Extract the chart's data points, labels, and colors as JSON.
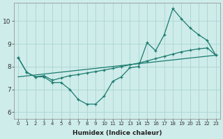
{
  "xlabel": "Humidex (Indice chaleur)",
  "bg_color": "#ceecea",
  "grid_color": "#a8d5d0",
  "line_color": "#1a7a6e",
  "xlim": [
    -0.5,
    23.5
  ],
  "ylim": [
    5.7,
    10.8
  ],
  "xticks": [
    0,
    1,
    2,
    3,
    4,
    5,
    6,
    7,
    8,
    9,
    10,
    11,
    12,
    13,
    14,
    15,
    16,
    17,
    18,
    19,
    20,
    21,
    22,
    23
  ],
  "yticks": [
    6,
    7,
    8,
    9,
    10
  ],
  "line1_x": [
    0,
    1,
    2,
    3,
    4,
    5,
    6,
    7,
    8,
    9,
    10,
    11,
    12,
    13,
    14,
    15,
    16,
    17,
    18,
    19,
    20,
    21,
    22,
    23
  ],
  "line1_y": [
    8.4,
    7.75,
    7.55,
    7.55,
    7.3,
    7.3,
    7.0,
    6.55,
    6.35,
    6.35,
    6.7,
    7.35,
    7.55,
    7.95,
    8.0,
    9.05,
    8.7,
    9.4,
    10.55,
    10.1,
    9.7,
    9.4,
    9.15,
    8.5
  ],
  "line2_x": [
    0,
    23
  ],
  "line2_y": [
    7.55,
    8.5
  ],
  "line3_x": [
    0,
    1,
    2,
    3,
    4,
    5,
    6,
    7,
    8,
    9,
    10,
    11,
    12,
    13,
    14,
    15,
    16,
    17,
    18,
    19,
    20,
    21,
    22,
    23
  ],
  "line3_y": [
    8.4,
    7.75,
    7.55,
    7.6,
    7.4,
    7.5,
    7.6,
    7.65,
    7.72,
    7.78,
    7.85,
    7.92,
    8.0,
    8.08,
    8.15,
    8.25,
    8.35,
    8.45,
    8.55,
    8.65,
    8.72,
    8.78,
    8.82,
    8.5
  ]
}
